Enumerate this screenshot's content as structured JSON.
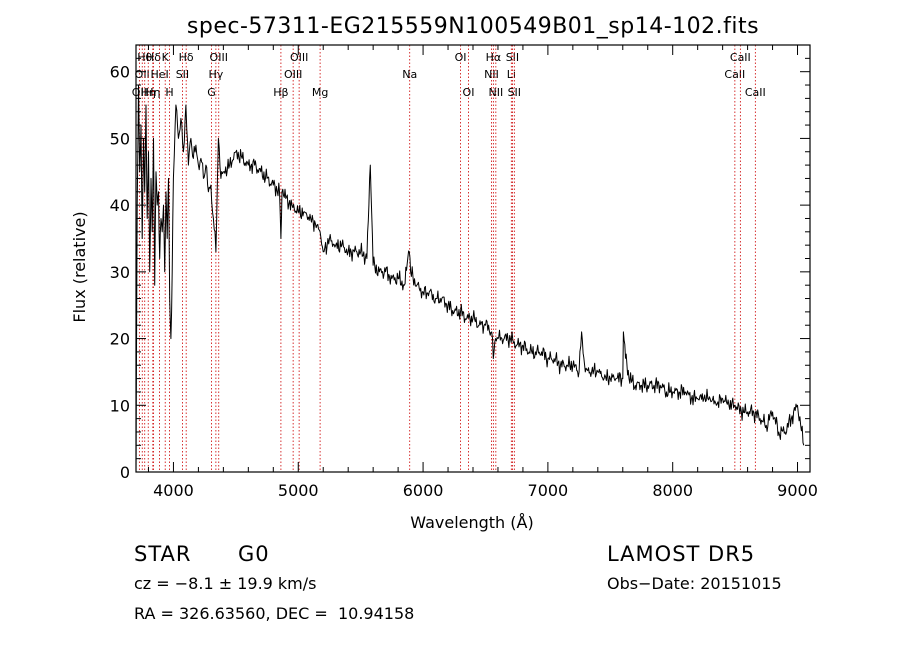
{
  "chart_data": {
    "type": "line",
    "title": "spec-57311-EG215559N100549B01_sp14-102.fits",
    "xlabel": "Wavelength (Å)",
    "ylabel": "Flux (relative)",
    "xlim": [
      3700,
      9100
    ],
    "ylim": [
      0,
      64
    ],
    "xticks": [
      4000,
      5000,
      6000,
      7000,
      8000,
      9000
    ],
    "yticks": [
      0,
      10,
      20,
      30,
      40,
      50,
      60
    ],
    "grid": false,
    "line_color": "#000000",
    "marker_color": "#cc0000",
    "series": [
      {
        "x": [
          3700,
          3710,
          3720,
          3730,
          3740,
          3750,
          3760,
          3770,
          3780,
          3790,
          3800,
          3810,
          3820,
          3830,
          3840,
          3850,
          3860,
          3870,
          3880,
          3890,
          3900,
          3910,
          3920,
          3930,
          3940,
          3950,
          3960,
          3970,
          3980,
          3990,
          4000,
          4020,
          4040,
          4060,
          4080,
          4100,
          4120,
          4140,
          4160,
          4180,
          4200,
          4220,
          4240,
          4260,
          4280,
          4300,
          4320,
          4340,
          4360,
          4380,
          4400,
          4450,
          4500,
          4550,
          4600,
          4650,
          4700,
          4750,
          4800,
          4850,
          4861,
          4870,
          4900,
          4950,
          5000,
          5050,
          5100,
          5150,
          5175,
          5200,
          5250,
          5300,
          5350,
          5400,
          5450,
          5500,
          5550,
          5577,
          5600,
          5650,
          5700,
          5750,
          5800,
          5850,
          5890,
          5900,
          5950,
          6000,
          6050,
          6100,
          6150,
          6200,
          6250,
          6300,
          6350,
          6400,
          6450,
          6500,
          6550,
          6563,
          6580,
          6600,
          6650,
          6700,
          6750,
          6800,
          6850,
          6900,
          6950,
          7000,
          7050,
          7100,
          7150,
          7200,
          7250,
          7270,
          7300,
          7350,
          7400,
          7450,
          7500,
          7550,
          7600,
          7605,
          7650,
          7700,
          7750,
          7800,
          7850,
          7900,
          7950,
          8000,
          8050,
          8100,
          8150,
          8200,
          8250,
          8300,
          8350,
          8400,
          8450,
          8500,
          8550,
          8600,
          8650,
          8700,
          8750,
          8800,
          8850,
          8900,
          8950,
          9000,
          9050
        ],
        "y": [
          0,
          40,
          58,
          45,
          52,
          35,
          50,
          42,
          55,
          38,
          48,
          30,
          44,
          36,
          50,
          28,
          45,
          40,
          42,
          32,
          38,
          36,
          40,
          30,
          42,
          35,
          44,
          26,
          20,
          30,
          44,
          55,
          50,
          53,
          48,
          55,
          46,
          50,
          47,
          49,
          46,
          47,
          44,
          46,
          42,
          43,
          38,
          33,
          50,
          44,
          45,
          46,
          48,
          47,
          46,
          46,
          45,
          44,
          43,
          42,
          35,
          42,
          41,
          40,
          39,
          39,
          38,
          37,
          36,
          33,
          35,
          34,
          34,
          33,
          33,
          33,
          32,
          46,
          31,
          30,
          30,
          29,
          29,
          28,
          33,
          30,
          28,
          27,
          27,
          26,
          26,
          25,
          24,
          24,
          23,
          23,
          22,
          22,
          21,
          17,
          20,
          20,
          20,
          20,
          19,
          19,
          18,
          18,
          18,
          17,
          17,
          16,
          16,
          16,
          15,
          21,
          15,
          15,
          15,
          14,
          14,
          14,
          14,
          21,
          14,
          13,
          13,
          13,
          13,
          13,
          12,
          12,
          12,
          12,
          11,
          11,
          11,
          11,
          10,
          11,
          10,
          10,
          9,
          9,
          9,
          8,
          7,
          9,
          6,
          6,
          8,
          10,
          4
        ]
      }
    ],
    "line_markers": [
      {
        "wl": 3727,
        "label": "OII",
        "row": 2
      },
      {
        "wl": 3750,
        "label": "OII",
        "row": 1
      },
      {
        "wl": 3770,
        "label": "Hθ",
        "row": 0
      },
      {
        "wl": 3798,
        "label": "Hη",
        "row": 2
      },
      {
        "wl": 3835,
        "label": "Hη",
        "row": 2
      },
      {
        "wl": 3840,
        "label": "Hδ",
        "row": 0
      },
      {
        "wl": 3889,
        "label": "HeI",
        "row": 1
      },
      {
        "wl": 3934,
        "label": "K",
        "row": 0
      },
      {
        "wl": 3969,
        "label": "H",
        "row": 2
      },
      {
        "wl": 4072,
        "label": "SII",
        "row": 1
      },
      {
        "wl": 4102,
        "label": "Hδ",
        "row": 0
      },
      {
        "wl": 4305,
        "label": "G",
        "row": 2
      },
      {
        "wl": 4340,
        "label": "Hγ",
        "row": 1
      },
      {
        "wl": 4363,
        "label": "OIII",
        "row": 0
      },
      {
        "wl": 4861,
        "label": "Hβ",
        "row": 2
      },
      {
        "wl": 4959,
        "label": "OIII",
        "row": 1
      },
      {
        "wl": 5007,
        "label": "OIII",
        "row": 0
      },
      {
        "wl": 5175,
        "label": "Mg",
        "row": 2
      },
      {
        "wl": 5893,
        "label": "Na",
        "row": 1
      },
      {
        "wl": 6300,
        "label": "OI",
        "row": 0
      },
      {
        "wl": 6364,
        "label": "OI",
        "row": 2
      },
      {
        "wl": 6548,
        "label": "NII",
        "row": 1
      },
      {
        "wl": 6563,
        "label": "Hα",
        "row": 0
      },
      {
        "wl": 6583,
        "label": "NII",
        "row": 2
      },
      {
        "wl": 6707,
        "label": "Li",
        "row": 1
      },
      {
        "wl": 6716,
        "label": "SII",
        "row": 0
      },
      {
        "wl": 6731,
        "label": "SII",
        "row": 2
      },
      {
        "wl": 8498,
        "label": "CaII",
        "row": 1
      },
      {
        "wl": 8542,
        "label": "CaII",
        "row": 0
      },
      {
        "wl": 8662,
        "label": "CaII",
        "row": 2
      }
    ]
  },
  "info": {
    "object_class": "STAR",
    "subclass": "G0",
    "survey": "LAMOST DR5",
    "cz": "cz = −8.1 ± 19.9 km/s",
    "obs_date": "Obs−Date: 20151015",
    "coords": "RA = 326.63560, DEC =  10.94158"
  }
}
